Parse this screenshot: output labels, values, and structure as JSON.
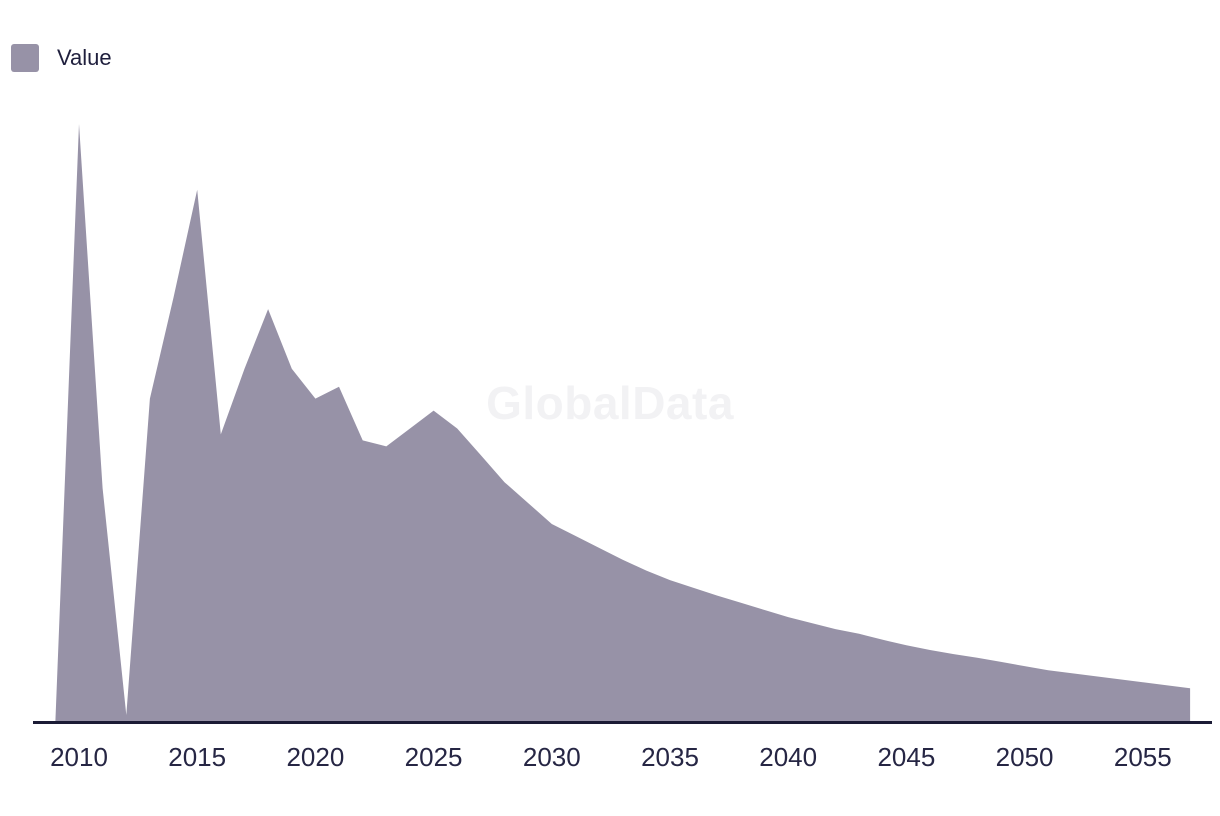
{
  "legend": {
    "items": [
      {
        "label": "Value",
        "color": "#9792a7"
      }
    ]
  },
  "watermark": {
    "text": "GlobalData"
  },
  "chart_data": {
    "type": "area",
    "title": "",
    "xlabel": "",
    "ylabel": "",
    "x": [
      2009,
      2010,
      2011,
      2012,
      2013,
      2014,
      2015,
      2016,
      2017,
      2018,
      2019,
      2020,
      2021,
      2022,
      2023,
      2024,
      2025,
      2026,
      2027,
      2028,
      2029,
      2030,
      2031,
      2032,
      2033,
      2034,
      2035,
      2036,
      2037,
      2038,
      2039,
      2040,
      2041,
      2042,
      2043,
      2044,
      2045,
      2046,
      2047,
      2048,
      2049,
      2050,
      2051,
      2052,
      2053,
      2054,
      2055,
      2056,
      2057
    ],
    "series": [
      {
        "name": "Value",
        "color": "#9792a7",
        "values": [
          0,
          100,
          39,
          1,
          54,
          71,
          89,
          48,
          59,
          69,
          59,
          54,
          56,
          47,
          46,
          49,
          52,
          49,
          44.5,
          40,
          36.5,
          33,
          31,
          29,
          27,
          25.2,
          23.6,
          22.3,
          21,
          19.8,
          18.6,
          17.4,
          16.4,
          15.4,
          14.6,
          13.6,
          12.7,
          11.9,
          11.2,
          10.6,
          9.9,
          9.2,
          8.5,
          8.0,
          7.5,
          7.0,
          6.5,
          6.0,
          5.5
        ]
      }
    ],
    "x_ticks": [
      "2010",
      "2015",
      "2020",
      "2025",
      "2030",
      "2035",
      "2040",
      "2045",
      "2050",
      "2055"
    ],
    "xlim": [
      2009,
      2057
    ],
    "ylim": [
      0,
      105
    ],
    "y_axis_visible": false,
    "grid": false,
    "legend_position": "top-left"
  },
  "colors": {
    "area": "#9792a7",
    "axis_line": "#1b1b35",
    "tick_text": "#262644",
    "legend_text": "#1f1f3d",
    "watermark": "#f2f2f4",
    "background": "#ffffff"
  }
}
